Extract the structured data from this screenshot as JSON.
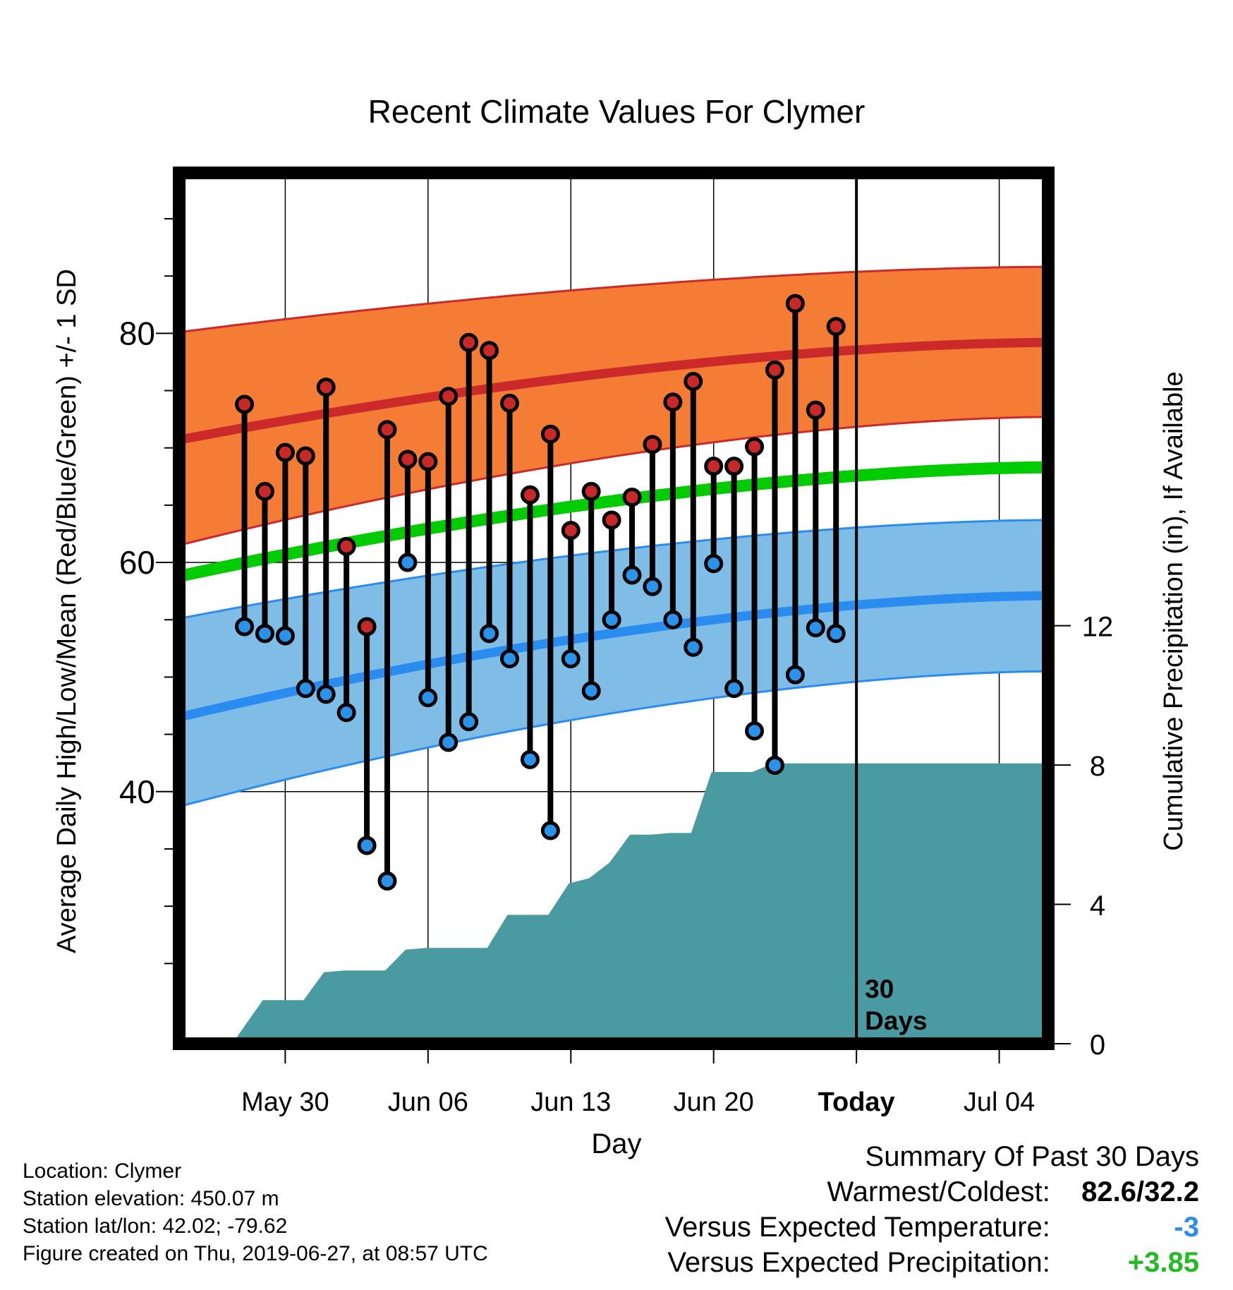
{
  "chart_data": {
    "type": "line",
    "title": "Recent Climate Values For Clymer",
    "xlabel": "Day",
    "ylabel": "Average Daily High/Low/Mean (Red/Blue/Green) +/- 1 SD",
    "y2label": "Cumulative Precipitation (in), If Available",
    "x_tick_labels": [
      "May 30",
      "Jun 06",
      "Jun 13",
      "Jun 20",
      "Today",
      "Jul 04"
    ],
    "y_ticks": [
      40,
      60,
      80
    ],
    "y2_ticks": [
      0,
      4,
      8,
      12
    ],
    "ylim": [
      18,
      94
    ],
    "y2lim": [
      0,
      25
    ],
    "xlim_days": [
      -33.2,
      9.4
    ],
    "today_marker_label": "30 Days",
    "grid": true,
    "days": [
      -30,
      -29,
      -28,
      -27,
      -26,
      -25,
      -24,
      -23,
      -22,
      -21,
      -20,
      -19,
      -18,
      -17,
      -16,
      -15,
      -14,
      -13,
      -12,
      -11,
      -10,
      -9,
      -8,
      -7,
      -6,
      -5,
      -4,
      -3,
      -2,
      -1
    ],
    "daily_high": [
      73.8,
      66.2,
      69.6,
      69.3,
      75.3,
      61.4,
      54.4,
      71.6,
      69.0,
      68.8,
      74.5,
      79.2,
      78.5,
      73.9,
      65.9,
      71.2,
      62.8,
      66.2,
      63.7,
      65.7,
      70.3,
      74.0,
      75.8,
      68.4,
      68.4,
      70.1,
      76.8,
      82.6,
      73.3,
      80.6
    ],
    "daily_low": [
      54.4,
      53.8,
      53.6,
      49.0,
      48.5,
      46.9,
      35.3,
      32.2,
      60.0,
      48.2,
      44.3,
      46.1,
      53.8,
      51.6,
      42.8,
      36.6,
      51.6,
      48.8,
      55.0,
      58.9,
      57.9,
      55.0,
      52.6,
      59.9,
      49.0,
      45.3,
      42.3,
      50.2,
      54.3,
      53.8
    ],
    "normal_mean_start_end": [
      58.8,
      68.3
    ],
    "normal_high_start_end": [
      70.7,
      79.2
    ],
    "normal_high_plus_sd_start_end": [
      80.1,
      85.8
    ],
    "normal_high_minus_sd_start_end": [
      61.5,
      72.7
    ],
    "normal_low_start_end": [
      46.5,
      57.1
    ],
    "normal_low_plus_sd_start_end": [
      55.1,
      63.7
    ],
    "normal_low_minus_sd_start_end": [
      38.7,
      50.5
    ],
    "cumulative_precip_points": [
      [
        -30.6,
        0.0
      ],
      [
        -29.1,
        1.25
      ],
      [
        -27.1,
        1.25
      ],
      [
        -26.1,
        2.05
      ],
      [
        -25.1,
        2.1
      ],
      [
        -23.1,
        2.1
      ],
      [
        -22.1,
        2.7
      ],
      [
        -21.1,
        2.75
      ],
      [
        -18.1,
        2.75
      ],
      [
        -17.1,
        3.7
      ],
      [
        -15.1,
        3.7
      ],
      [
        -14.1,
        4.6
      ],
      [
        -13.1,
        4.75
      ],
      [
        -12.1,
        5.2
      ],
      [
        -11.1,
        6.0
      ],
      [
        -10.1,
        6.0
      ],
      [
        -9.1,
        6.05
      ],
      [
        -8.1,
        6.05
      ],
      [
        -7.1,
        7.8
      ],
      [
        -5.1,
        7.8
      ],
      [
        -4.1,
        8.05
      ],
      [
        9.4,
        8.05
      ]
    ],
    "series": [
      {
        "name": "High",
        "color": "#c62828"
      },
      {
        "name": "Low",
        "color": "#2e8fe6"
      },
      {
        "name": "Mean",
        "color": "#00cc00"
      }
    ],
    "colors": {
      "high_band": "#f47c35",
      "high_line": "#cc2a2a",
      "low_band": "#80bde6",
      "low_line": "#2b8cf0",
      "mean_line": "#00cc00",
      "precip_fill": "#4a9aa2",
      "high_marker": "#c82828",
      "low_marker": "#2a92e8"
    }
  },
  "footer": {
    "location": "Location: Clymer",
    "elevation": "Station elevation: 450.07 m",
    "latlon": "Station lat/lon: 42.02; -79.62",
    "created": "Figure created on Thu, 2019-06-27, at 08:57 UTC"
  },
  "summary": {
    "heading": "Summary Of Past 30 Days",
    "warm_cold_label": "Warmest/Coldest:",
    "warm_cold_value": "82.6/32.2",
    "temp_label": "Versus Expected Temperature:",
    "temp_value": "-3",
    "temp_color": "#2b8cf0",
    "precip_label": "Versus Expected Precipitation:",
    "precip_value": "+3.85",
    "precip_color": "#22bb22"
  }
}
